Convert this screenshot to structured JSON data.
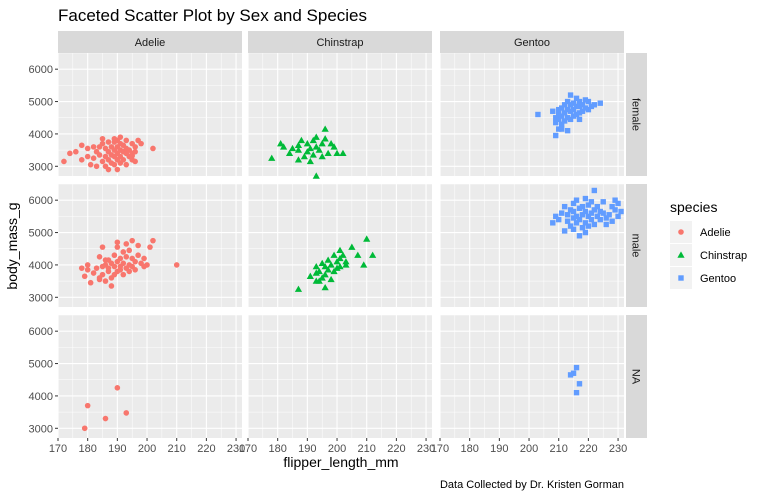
{
  "chart_data": {
    "type": "scatter",
    "title": "Faceted Scatter Plot by Sex and Species",
    "xlabel": "flipper_length_mm",
    "ylabel": "body_mass_g",
    "caption": "Data Collected by Dr. Kristen Gorman",
    "xlim": [
      170,
      232
    ],
    "ylim": [
      2700,
      6500
    ],
    "x_ticks": [
      170,
      180,
      190,
      200,
      210,
      220,
      230
    ],
    "y_ticks": [
      3000,
      4000,
      5000,
      6000
    ],
    "x_tick_labels": [
      "170",
      "180",
      "190",
      "200",
      "210",
      "220",
      "230"
    ],
    "y_tick_labels": [
      "3000",
      "4000",
      "5000",
      "6000"
    ],
    "grid": true,
    "legend": {
      "title": "species",
      "position": "right",
      "entries": [
        {
          "name": "Adelie",
          "color": "#F8766D",
          "shape": "circle"
        },
        {
          "name": "Chinstrap",
          "color": "#00BA38",
          "shape": "triangle"
        },
        {
          "name": "Gentoo",
          "color": "#619CFF",
          "shape": "square"
        }
      ]
    },
    "facet_cols": [
      "Adelie",
      "Chinstrap",
      "Gentoo"
    ],
    "facet_rows": [
      "female",
      "male",
      "NA"
    ],
    "series": [
      {
        "name": "Adelie",
        "sex": "female",
        "points": [
          [
            172,
            3150
          ],
          [
            174,
            3400
          ],
          [
            176,
            3450
          ],
          [
            178,
            3200
          ],
          [
            178,
            3650
          ],
          [
            180,
            3300
          ],
          [
            181,
            3050
          ],
          [
            182,
            3250
          ],
          [
            182,
            3600
          ],
          [
            183,
            3000
          ],
          [
            183,
            3450
          ],
          [
            184,
            3350
          ],
          [
            185,
            3150
          ],
          [
            185,
            3700
          ],
          [
            186,
            3000
          ],
          [
            186,
            3300
          ],
          [
            186,
            3550
          ],
          [
            187,
            2900
          ],
          [
            187,
            3200
          ],
          [
            187,
            3450
          ],
          [
            188,
            3100
          ],
          [
            188,
            3350
          ],
          [
            188,
            3600
          ],
          [
            189,
            3050
          ],
          [
            189,
            3300
          ],
          [
            189,
            3500
          ],
          [
            189,
            3750
          ],
          [
            190,
            2900
          ],
          [
            190,
            3200
          ],
          [
            190,
            3400
          ],
          [
            190,
            3600
          ],
          [
            191,
            3100
          ],
          [
            191,
            3300
          ],
          [
            191,
            3500
          ],
          [
            191,
            3700
          ],
          [
            192,
            3200
          ],
          [
            192,
            3450
          ],
          [
            192,
            3650
          ],
          [
            193,
            3050
          ],
          [
            193,
            3400
          ],
          [
            193,
            3550
          ],
          [
            193,
            3800
          ],
          [
            194,
            3300
          ],
          [
            194,
            3500
          ],
          [
            195,
            3200
          ],
          [
            195,
            3400
          ],
          [
            195,
            3700
          ],
          [
            196,
            3450
          ],
          [
            196,
            3600
          ],
          [
            197,
            3800
          ],
          [
            198,
            3700
          ],
          [
            202,
            3550
          ],
          [
            185,
            3850
          ],
          [
            189,
            3850
          ],
          [
            190,
            3800
          ],
          [
            191,
            3900
          ],
          [
            195,
            3325
          ],
          [
            196,
            3150
          ],
          [
            187,
            3750
          ],
          [
            184,
            3600
          ],
          [
            180,
            3550
          ]
        ]
      },
      {
        "name": "Chinstrap",
        "sex": "female",
        "points": [
          [
            178,
            3250
          ],
          [
            181,
            3700
          ],
          [
            182,
            3600
          ],
          [
            184,
            3400
          ],
          [
            185,
            3550
          ],
          [
            187,
            3200
          ],
          [
            187,
            3650
          ],
          [
            188,
            3800
          ],
          [
            189,
            3300
          ],
          [
            190,
            3450
          ],
          [
            190,
            3700
          ],
          [
            191,
            3150
          ],
          [
            191,
            3550
          ],
          [
            192,
            3350
          ],
          [
            192,
            3800
          ],
          [
            193,
            3600
          ],
          [
            193,
            3900
          ],
          [
            194,
            3500
          ],
          [
            195,
            3300
          ],
          [
            195,
            3700
          ],
          [
            196,
            3850
          ],
          [
            196,
            4150
          ],
          [
            197,
            3400
          ],
          [
            198,
            3700
          ],
          [
            199,
            3600
          ],
          [
            200,
            3400
          ],
          [
            202,
            3400
          ],
          [
            187,
            3500
          ],
          [
            193,
            2700
          ]
        ]
      },
      {
        "name": "Gentoo",
        "sex": "female",
        "points": [
          [
            203,
            4600
          ],
          [
            208,
            4700
          ],
          [
            209,
            4350
          ],
          [
            209,
            4500
          ],
          [
            210,
            4150
          ],
          [
            210,
            4450
          ],
          [
            210,
            4600
          ],
          [
            210,
            4750
          ],
          [
            211,
            4300
          ],
          [
            211,
            4550
          ],
          [
            211,
            4800
          ],
          [
            212,
            4400
          ],
          [
            212,
            4650
          ],
          [
            212,
            4900
          ],
          [
            213,
            4500
          ],
          [
            213,
            4750
          ],
          [
            213,
            5000
          ],
          [
            214,
            4450
          ],
          [
            214,
            4700
          ],
          [
            214,
            4900
          ],
          [
            214,
            5200
          ],
          [
            215,
            4550
          ],
          [
            215,
            4750
          ],
          [
            215,
            4950
          ],
          [
            216,
            4600
          ],
          [
            216,
            4850
          ],
          [
            216,
            5100
          ],
          [
            217,
            4650
          ],
          [
            217,
            4850
          ],
          [
            217,
            5000
          ],
          [
            218,
            4700
          ],
          [
            218,
            4900
          ],
          [
            219,
            4800
          ],
          [
            219,
            5050
          ],
          [
            220,
            4750
          ],
          [
            220,
            5000
          ],
          [
            221,
            4850
          ],
          [
            222,
            4900
          ],
          [
            224,
            4950
          ],
          [
            209,
            3950
          ],
          [
            211,
            4150
          ],
          [
            213,
            4100
          ],
          [
            217,
            4450
          ]
        ]
      },
      {
        "name": "Adelie",
        "sex": "male",
        "points": [
          [
            178,
            3900
          ],
          [
            179,
            3650
          ],
          [
            180,
            3850
          ],
          [
            181,
            3450
          ],
          [
            182,
            3750
          ],
          [
            183,
            3900
          ],
          [
            184,
            3600
          ],
          [
            184,
            4250
          ],
          [
            185,
            3950
          ],
          [
            185,
            3700
          ],
          [
            186,
            4000
          ],
          [
            186,
            3500
          ],
          [
            187,
            3800
          ],
          [
            187,
            4150
          ],
          [
            188,
            3600
          ],
          [
            188,
            4050
          ],
          [
            188,
            3350
          ],
          [
            189,
            3950
          ],
          [
            189,
            3700
          ],
          [
            189,
            4300
          ],
          [
            190,
            3800
          ],
          [
            190,
            4100
          ],
          [
            190,
            4550
          ],
          [
            191,
            3850
          ],
          [
            191,
            4200
          ],
          [
            191,
            3950
          ],
          [
            192,
            4050
          ],
          [
            192,
            3700
          ],
          [
            192,
            4400
          ],
          [
            193,
            3900
          ],
          [
            193,
            4250
          ],
          [
            193,
            4650
          ],
          [
            194,
            4000
          ],
          [
            194,
            3800
          ],
          [
            194,
            4450
          ],
          [
            195,
            3950
          ],
          [
            195,
            4200
          ],
          [
            195,
            4750
          ],
          [
            196,
            4100
          ],
          [
            196,
            3850
          ],
          [
            197,
            4300
          ],
          [
            197,
            4600
          ],
          [
            198,
            4050
          ],
          [
            199,
            4200
          ],
          [
            199,
            3950
          ],
          [
            200,
            4000
          ],
          [
            201,
            4550
          ],
          [
            202,
            4750
          ],
          [
            210,
            4000
          ],
          [
            180,
            4000
          ],
          [
            184,
            3550
          ],
          [
            190,
            4700
          ],
          [
            185,
            4550
          ],
          [
            186,
            4150
          ],
          [
            187,
            3900
          ]
        ]
      },
      {
        "name": "Chinstrap",
        "sex": "male",
        "points": [
          [
            187,
            3250
          ],
          [
            191,
            3650
          ],
          [
            193,
            3750
          ],
          [
            193,
            3950
          ],
          [
            194,
            3500
          ],
          [
            194,
            3800
          ],
          [
            195,
            3600
          ],
          [
            195,
            4050
          ],
          [
            196,
            3700
          ],
          [
            196,
            3950
          ],
          [
            197,
            3850
          ],
          [
            197,
            4150
          ],
          [
            198,
            3550
          ],
          [
            198,
            4000
          ],
          [
            199,
            3800
          ],
          [
            199,
            4300
          ],
          [
            200,
            3900
          ],
          [
            200,
            4100
          ],
          [
            201,
            4450
          ],
          [
            201,
            3950
          ],
          [
            202,
            4300
          ],
          [
            203,
            4000
          ],
          [
            203,
            4100
          ],
          [
            205,
            4550
          ],
          [
            207,
            4300
          ],
          [
            209,
            4000
          ],
          [
            210,
            4800
          ],
          [
            212,
            4300
          ],
          [
            196,
            3300
          ],
          [
            193,
            3500
          ],
          [
            201,
            4200
          ]
        ]
      },
      {
        "name": "Gentoo",
        "sex": "male",
        "points": [
          [
            208,
            5300
          ],
          [
            209,
            5500
          ],
          [
            210,
            5400
          ],
          [
            211,
            5600
          ],
          [
            212,
            5800
          ],
          [
            213,
            5350
          ],
          [
            213,
            5550
          ],
          [
            214,
            5700
          ],
          [
            214,
            5200
          ],
          [
            215,
            5450
          ],
          [
            215,
            5900
          ],
          [
            215,
            5650
          ],
          [
            216,
            5500
          ],
          [
            216,
            5300
          ],
          [
            216,
            6000
          ],
          [
            217,
            5750
          ],
          [
            217,
            5400
          ],
          [
            217,
            4900
          ],
          [
            218,
            5550
          ],
          [
            218,
            5800
          ],
          [
            218,
            5150
          ],
          [
            219,
            5650
          ],
          [
            219,
            5300
          ],
          [
            219,
            6050
          ],
          [
            220,
            5500
          ],
          [
            220,
            5850
          ],
          [
            220,
            5200
          ],
          [
            221,
            5600
          ],
          [
            221,
            5400
          ],
          [
            221,
            5950
          ],
          [
            222,
            5700
          ],
          [
            222,
            5250
          ],
          [
            222,
            6300
          ],
          [
            223,
            5500
          ],
          [
            223,
            5800
          ],
          [
            224,
            5400
          ],
          [
            224,
            5650
          ],
          [
            225,
            5600
          ],
          [
            225,
            5950
          ],
          [
            226,
            5450
          ],
          [
            226,
            5250
          ],
          [
            227,
            5550
          ],
          [
            228,
            5800
          ],
          [
            228,
            5350
          ],
          [
            229,
            5700
          ],
          [
            229,
            6000
          ],
          [
            230,
            5500
          ],
          [
            230,
            5900
          ],
          [
            231,
            5650
          ],
          [
            215,
            5100
          ],
          [
            219,
            5000
          ],
          [
            212,
            5050
          ]
        ]
      },
      {
        "name": "Adelie",
        "sex": "NA",
        "points": [
          [
            180,
            3700
          ],
          [
            186,
            3300
          ],
          [
            190,
            4250
          ],
          [
            193,
            3475
          ],
          [
            179,
            3000
          ]
        ]
      },
      {
        "name": "Gentoo",
        "sex": "NA",
        "points": [
          [
            214,
            4650
          ],
          [
            215,
            4700
          ],
          [
            216,
            4875
          ],
          [
            216,
            4100
          ],
          [
            217,
            4375
          ]
        ]
      }
    ]
  }
}
